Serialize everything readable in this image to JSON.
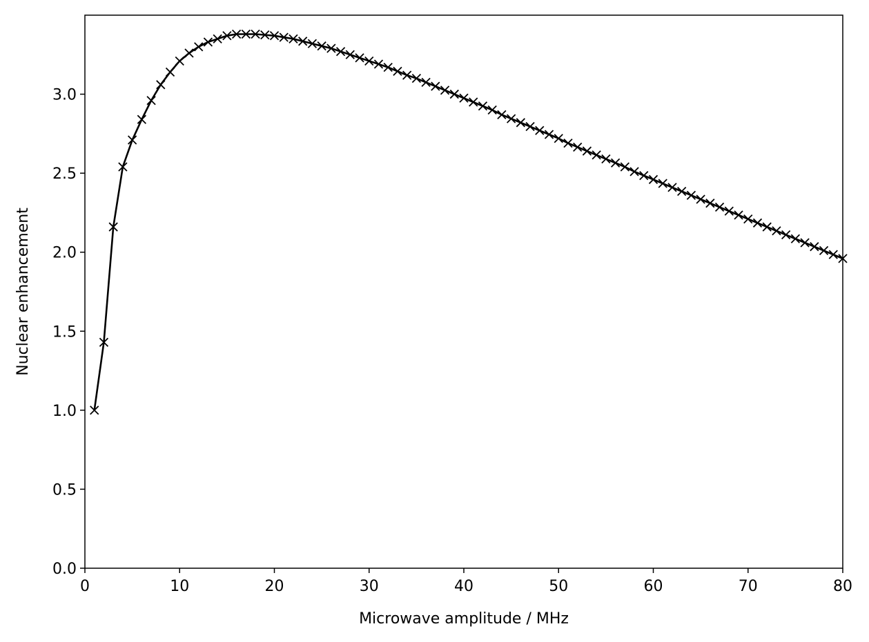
{
  "chart_data": {
    "type": "line",
    "title": "",
    "xlabel": "Microwave amplitude / MHz",
    "ylabel": "Nuclear enhancement",
    "xlim": [
      0,
      80
    ],
    "ylim": [
      0,
      3.5
    ],
    "grid": false,
    "x_ticks": [
      0,
      10,
      20,
      30,
      40,
      50,
      60,
      70,
      80
    ],
    "y_ticks": [
      0.0,
      0.5,
      1.0,
      1.5,
      2.0,
      2.5,
      3.0
    ],
    "x_tick_labels": [
      "0",
      "10",
      "20",
      "30",
      "40",
      "50",
      "60",
      "70",
      "80"
    ],
    "y_tick_labels": [
      "0.0",
      "0.5",
      "1.0",
      "1.5",
      "2.0",
      "2.5",
      "3.0"
    ],
    "line_color": "#000000",
    "marker": "x",
    "series": [
      {
        "x": [
          1,
          2,
          3,
          4,
          5,
          6,
          7,
          8,
          9,
          10,
          11,
          12,
          13,
          14,
          15,
          16,
          17,
          18,
          19,
          20,
          21,
          22,
          23,
          24,
          25,
          26,
          27,
          28,
          29,
          30,
          31,
          32,
          33,
          34,
          35,
          36,
          37,
          38,
          39,
          40,
          41,
          42,
          43,
          44,
          45,
          46,
          47,
          48,
          49,
          50,
          51,
          52,
          53,
          54,
          55,
          56,
          57,
          58,
          59,
          60,
          61,
          62,
          63,
          64,
          65,
          66,
          67,
          68,
          69,
          70,
          71,
          72,
          73,
          74,
          75,
          76,
          77,
          78,
          79,
          80
        ],
        "y": [
          1.0,
          1.43,
          2.16,
          2.54,
          2.71,
          2.84,
          2.96,
          3.06,
          3.14,
          3.21,
          3.26,
          3.3,
          3.33,
          3.35,
          3.37,
          3.38,
          3.38,
          3.38,
          3.375,
          3.37,
          3.36,
          3.35,
          3.335,
          3.32,
          3.305,
          3.29,
          3.27,
          3.25,
          3.23,
          3.21,
          3.19,
          3.17,
          3.145,
          3.12,
          3.1,
          3.075,
          3.05,
          3.025,
          3.0,
          2.975,
          2.95,
          2.925,
          2.9,
          2.87,
          2.845,
          2.82,
          2.795,
          2.77,
          2.745,
          2.72,
          2.69,
          2.665,
          2.64,
          2.615,
          2.59,
          2.565,
          2.54,
          2.51,
          2.485,
          2.46,
          2.435,
          2.41,
          2.385,
          2.36,
          2.335,
          2.31,
          2.285,
          2.26,
          2.235,
          2.21,
          2.185,
          2.16,
          2.135,
          2.11,
          2.085,
          2.06,
          2.035,
          2.01,
          1.985,
          1.96
        ]
      }
    ]
  }
}
